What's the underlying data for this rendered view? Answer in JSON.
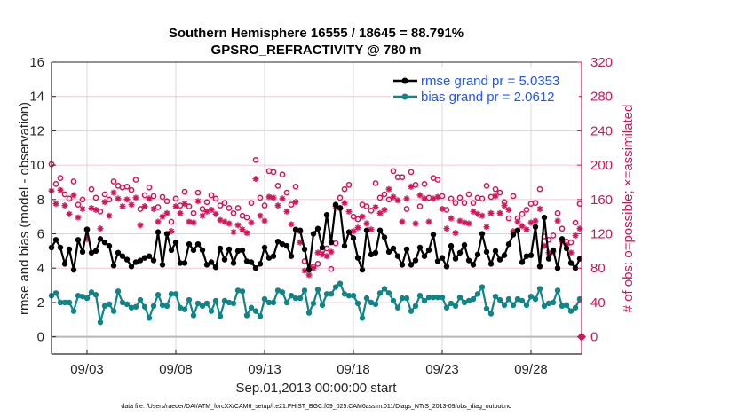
{
  "chart_data": {
    "type": "line",
    "title": [
      "Southern Hemisphere 16555 / 18645 = 88.791%",
      "GPSRO_REFRACTIVITY @ 780 m"
    ],
    "xlabel": "Sep.01,2013 00:00:00 start",
    "ylabel": "rmse and bias (model - observation)",
    "y2label": "# of obs: o=possible; ×=assimilated",
    "footer": "data file: /Users/raeder/DAI/ATM_forcXX/CAM6_setup/f.e21.FHIST_BGC.f09_025.CAM6assim.011/Diags_NTrS_2013-09/obs_diag_output.nc",
    "x_start_day": 1,
    "interval_hours": 6,
    "xlim_days": [
      1,
      30.85
    ],
    "xticks": [
      {
        "day": 3,
        "label": "09/03"
      },
      {
        "day": 8,
        "label": "09/08"
      },
      {
        "day": 13,
        "label": "09/13"
      },
      {
        "day": 18,
        "label": "09/18"
      },
      {
        "day": 23,
        "label": "09/23"
      },
      {
        "day": 28,
        "label": "09/28"
      }
    ],
    "ylim": [
      -1,
      16
    ],
    "yticks": [
      0,
      2,
      4,
      6,
      8,
      10,
      12,
      14,
      16
    ],
    "y2lim": [
      -20,
      320
    ],
    "y2ticks": [
      0,
      40,
      80,
      120,
      160,
      200,
      240,
      280,
      320
    ],
    "grid": true,
    "legend_position": "top-right",
    "colors": {
      "rmse": "#000000",
      "bias": "#0f8585",
      "obs": "#d4145a",
      "grid": "#d9d9d9",
      "hgrid": "#f5c6d6",
      "legend_text": "#1f56ff"
    },
    "series": [
      {
        "name": "rmse",
        "legend": "rmse grand pr = 5.0353",
        "axis": "left",
        "values": [
          5.2,
          5.65,
          5.2,
          4.25,
          5.1,
          3.9,
          5.65,
          4.95,
          6.25,
          4.9,
          5.0,
          5.7,
          5.5,
          5.3,
          4.15,
          4.9,
          4.7,
          4.5,
          4.1,
          4.35,
          4.45,
          4.6,
          4.7,
          4.45,
          6.1,
          4.2,
          6.0,
          5.05,
          5.5,
          4.3,
          4.3,
          5.4,
          5.05,
          5.4,
          5.05,
          4.2,
          4.35,
          4.05,
          5.15,
          4.5,
          5.1,
          4.3,
          5.0,
          5.05,
          4.4,
          4.35,
          4.0,
          4.25,
          5.2,
          4.6,
          4.7,
          5.55,
          5.4,
          5.3,
          4.7,
          6.25,
          6.2,
          5.1,
          3.9,
          6.0,
          6.3,
          5.2,
          7.1,
          5.5,
          7.7,
          7.5,
          5.3,
          6.1,
          5.75,
          4.6,
          3.9,
          6.2,
          4.8,
          4.9,
          6.2,
          5.8,
          4.95,
          5.15,
          4.7,
          4.2,
          5.1,
          4.2,
          4.45,
          5.2,
          4.7,
          5.05,
          5.95,
          4.4,
          4.6,
          4.1,
          5.3,
          4.55,
          4.9,
          5.35,
          4.45,
          4.2,
          4.8,
          6.0,
          4.95,
          4.25,
          5.0,
          4.5,
          4.75,
          5.4,
          5.95,
          6.2,
          4.35,
          4.7,
          4.75,
          6.4,
          4.1,
          6.95,
          4.55,
          5.05,
          4.0,
          5.7,
          5.15,
          4.3,
          4.0,
          4.55
        ]
      },
      {
        "name": "bias",
        "legend": "bias grand pr = 2.0612",
        "axis": "left",
        "values": [
          2.4,
          2.55,
          2.0,
          2.0,
          2.0,
          1.5,
          2.4,
          2.35,
          2.25,
          2.6,
          2.45,
          0.85,
          1.8,
          1.9,
          1.5,
          2.65,
          2.0,
          1.9,
          1.7,
          1.75,
          2.15,
          1.75,
          1.1,
          1.8,
          2.45,
          1.85,
          1.8,
          2.5,
          2.5,
          1.7,
          1.6,
          2.15,
          1.25,
          1.95,
          1.8,
          1.95,
          1.5,
          2.1,
          1.2,
          2.1,
          2.0,
          1.95,
          2.7,
          2.65,
          1.25,
          1.7,
          1.5,
          1.2,
          2.2,
          2.0,
          2.0,
          2.7,
          2.6,
          2.0,
          2.4,
          2.25,
          2.25,
          2.7,
          1.4,
          1.95,
          2.75,
          1.85,
          2.5,
          2.5,
          2.9,
          3.1,
          2.5,
          2.4,
          2.4,
          1.95,
          1.1,
          2.25,
          2.0,
          1.9,
          2.55,
          2.8,
          2.55,
          2.1,
          1.7,
          2.25,
          2.25,
          1.5,
          1.8,
          2.4,
          2.1,
          2.3,
          2.3,
          2.3,
          2.3,
          1.7,
          1.95,
          1.8,
          2.3,
          2.0,
          2.1,
          2.2,
          2.5,
          2.9,
          1.65,
          1.35,
          2.35,
          2.15,
          1.85,
          2.2,
          1.85,
          2.2,
          2.1,
          1.85,
          2.35,
          2.2,
          2.8,
          1.8,
          1.95,
          2.0,
          2.7,
          1.8,
          1.85,
          1.5,
          1.7,
          2.2
        ]
      },
      {
        "name": "possible",
        "marker": "circle",
        "axis": "right",
        "values": [
          201,
          178,
          185,
          166,
          161,
          181,
          154,
          160,
          125,
          172,
          162,
          146,
          166,
          160,
          181,
          176,
          174,
          175,
          171,
          183,
          149,
          165,
          174,
          164,
          151,
          163,
          158,
          134,
          161,
          153,
          169,
          152,
          144,
          168,
          149,
          157,
          165,
          161,
          153,
          156,
          150,
          144,
          150,
          141,
          139,
          156,
          206,
          162,
          153,
          193,
          192,
          176,
          189,
          168,
          154,
          175,
          123,
          88,
          79,
          82,
          85,
          101,
          103,
          79,
          109,
          162,
          172,
          177,
          140,
          137,
          154,
          152,
          147,
          179,
          162,
          166,
          160,
          193,
          186,
          186,
          149,
          192,
          177,
          152,
          178,
          162,
          185,
          183,
          164,
          148,
          161,
          156,
          162,
          156,
          166,
          156,
          162,
          161,
          176,
          163,
          172,
          168,
          157,
          138,
          164,
          138,
          143,
          148,
          155,
          156,
          172,
          117,
          113,
          118,
          144,
          126,
          111,
          110,
          133,
          155
        ]
      },
      {
        "name": "assimilated",
        "marker": "asterisk",
        "axis": "right",
        "values": [
          170,
          155,
          171,
          153,
          143,
          165,
          139,
          149,
          114,
          150,
          148,
          126,
          157,
          141,
          168,
          161,
          152,
          160,
          154,
          162,
          130,
          152,
          161,
          149,
          134,
          140,
          144,
          123,
          152,
          144,
          155,
          134,
          133,
          158,
          141,
          146,
          148,
          143,
          136,
          134,
          132,
          122,
          130,
          125,
          121,
          133,
          184,
          141,
          135,
          163,
          162,
          153,
          161,
          146,
          131,
          157,
          110,
          77,
          72,
          80,
          98,
          96,
          94,
          99,
          152,
          150,
          156,
          146,
          123,
          127,
          140,
          132,
          125,
          151,
          144,
          148,
          172,
          163,
          159,
          134,
          161,
          175,
          132,
          165,
          161,
          134,
          161,
          163,
          149,
          126,
          138,
          121,
          135,
          133,
          132,
          146,
          143,
          141,
          128,
          144,
          164,
          144,
          153,
          148,
          123,
          134,
          129,
          125,
          133,
          135,
          149,
          106,
          98,
          99,
          135,
          111,
          107,
          98,
          118,
          126
        ]
      }
    ],
    "end_marker": {
      "day": 30.85,
      "value": 0,
      "axis": "right"
    }
  }
}
